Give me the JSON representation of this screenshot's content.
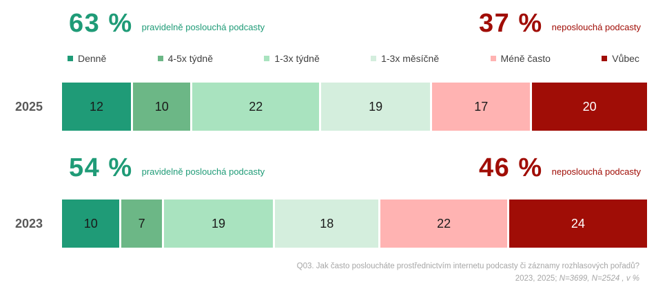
{
  "sections": [
    {
      "year": "2025",
      "listen_pct": "63 %",
      "listen_label": "pravidelně poslouchá podcasty",
      "not_listen_pct": "37 %",
      "not_listen_label": "neposlouchá podcasty"
    },
    {
      "year": "2023",
      "listen_pct": "54 %",
      "listen_label": "pravidelně poslouchá podcasty",
      "not_listen_pct": "46 %",
      "not_listen_label": "neposlouchá podcasty"
    }
  ],
  "chart_data": {
    "type": "bar",
    "orientation": "horizontal-stacked",
    "units": "percent",
    "categories": [
      "2025",
      "2023"
    ],
    "x_range": [
      0,
      100
    ],
    "grid": false,
    "legend_position": "top",
    "series": [
      {
        "name": "Denně",
        "color": "#1f9b77",
        "label_color": "#1a1a1a",
        "values": [
          12,
          10
        ]
      },
      {
        "name": "4-5x týdně",
        "color": "#6cb786",
        "label_color": "#1a1a1a",
        "values": [
          10,
          7
        ]
      },
      {
        "name": "1-3x týdně",
        "color": "#a9e3bf",
        "label_color": "#1a1a1a",
        "values": [
          22,
          19
        ]
      },
      {
        "name": "1-3x měsíčně",
        "color": "#d4eedd",
        "label_color": "#1a1a1a",
        "values": [
          19,
          18
        ]
      },
      {
        "name": "Méně často",
        "color": "#ffb3b2",
        "label_color": "#1a1a1a",
        "values": [
          17,
          22
        ]
      },
      {
        "name": "Vůbec",
        "color": "#a00d06",
        "label_color": "#ffffff",
        "values": [
          20,
          24
        ]
      }
    ],
    "annotations": [
      {
        "category": "2025",
        "regular_listeners": "63 %",
        "non_listeners": "37 %"
      },
      {
        "category": "2023",
        "regular_listeners": "54 %",
        "non_listeners": "46 %"
      }
    ]
  },
  "colors": {
    "accent_green": "#1f9b77",
    "accent_red": "#a00d06",
    "year_label": "#595959",
    "footnote": "#a6a6a6"
  },
  "footer": {
    "line1": "Q03. Jak často posloucháte prostřednictvím internetu podcasty či záznamy rozhlasových pořadů?",
    "line2_prefix": "2023, 2025; ",
    "line2_italic": "N=3699, N=2524 , v %"
  }
}
